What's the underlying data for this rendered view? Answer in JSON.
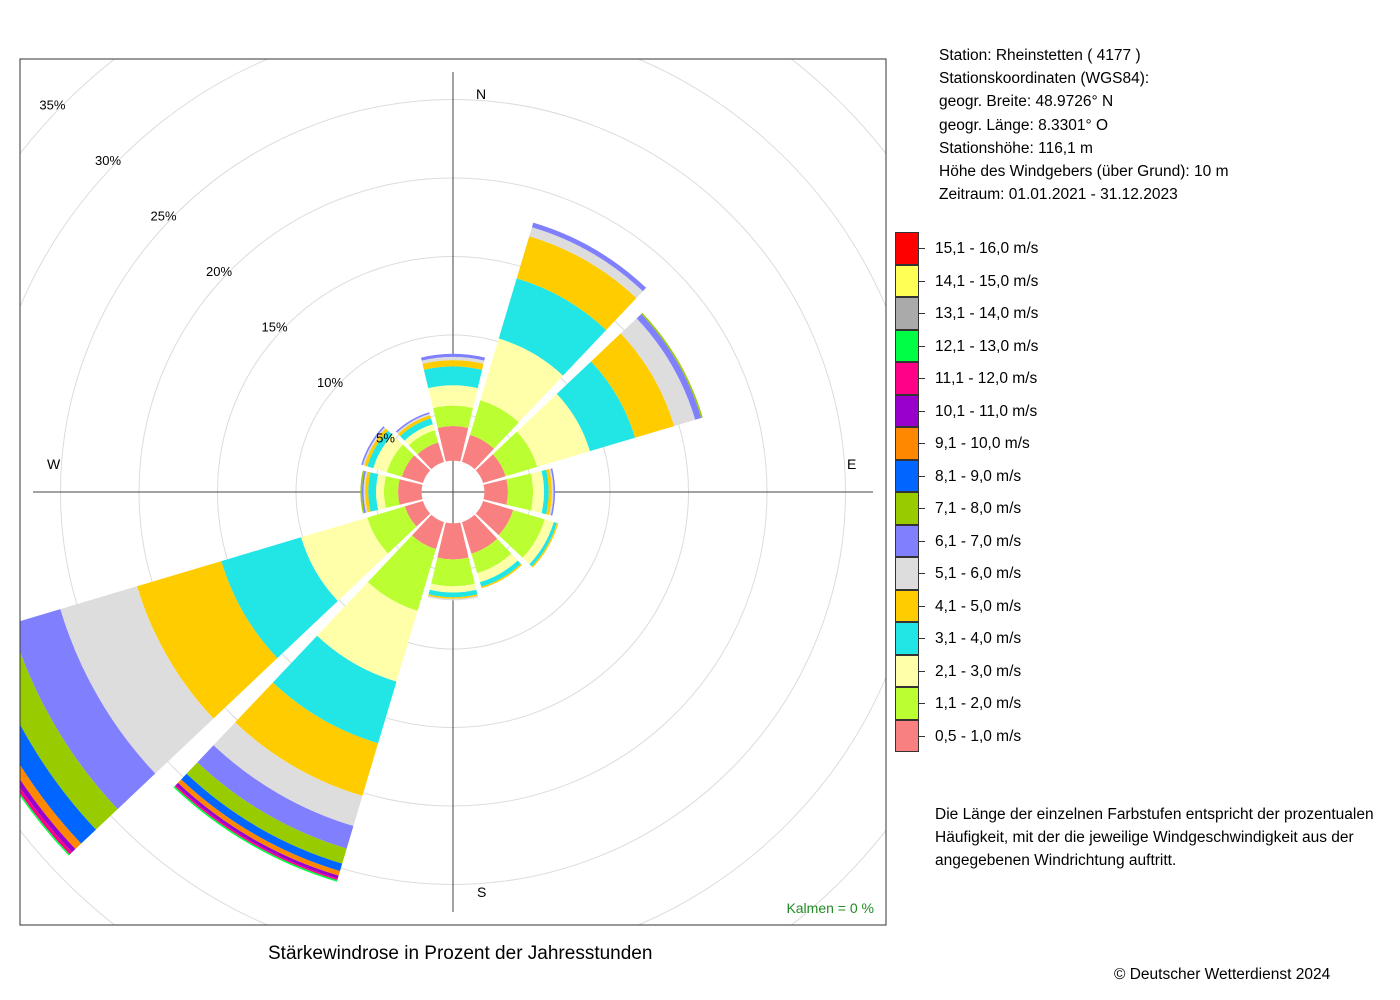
{
  "title": "Stärkewindrose in Prozent der Jahresstunden",
  "copyright": "© Deutscher Wetterdienst  2024",
  "station_info": [
    "Station:  Rheinstetten  ( 4177 )",
    "Stationskoordinaten (WGS84):",
    "geogr. Breite: 48.9726° N",
    "geogr. Länge:   8.3301° O",
    "Stationshöhe: 116,1 m",
    "Höhe des Windgebers (über Grund): 10 m",
    "Zeitraum: 01.01.2021 - 31.12.2023"
  ],
  "legend": [
    {
      "label": "15,1 - 16,0 m/s",
      "color": "#ff0000"
    },
    {
      "label": "14,1 - 15,0 m/s",
      "color": "#ffff55"
    },
    {
      "label": "13,1 - 14,0 m/s",
      "color": "#aaaaaa"
    },
    {
      "label": "12,1 - 13,0 m/s",
      "color": "#00ff44"
    },
    {
      "label": "11,1 - 12,0 m/s",
      "color": "#ff0088"
    },
    {
      "label": "10,1 - 11,0 m/s",
      "color": "#9900cc"
    },
    {
      "label": "9,1 - 10,0 m/s",
      "color": "#ff8800"
    },
    {
      "label": "8,1 - 9,0 m/s",
      "color": "#0066ff"
    },
    {
      "label": "7,1 - 8,0 m/s",
      "color": "#99cc00"
    },
    {
      "label": "6,1 - 7,0 m/s",
      "color": "#8080ff"
    },
    {
      "label": "5,1 - 6,0 m/s",
      "color": "#dddddd"
    },
    {
      "label": "4,1 - 5,0 m/s",
      "color": "#ffcc00"
    },
    {
      "label": "3,1 - 4,0 m/s",
      "color": "#22e5e5"
    },
    {
      "label": "2,1 - 3,0 m/s",
      "color": "#ffffaa"
    },
    {
      "label": "1,1 - 2,0 m/s",
      "color": "#bbff33"
    },
    {
      "label": "0,5 - 1,0 m/s",
      "color": "#f88080"
    }
  ],
  "note": "Die Länge der einzelnen Farbstufen entspricht der prozentualen Häufigkeit, mit der die jeweilige Windgeschwindigkeit aus der angegebenen Windrichtung auftritt.",
  "calm_label": "Kalmen  =  0 %",
  "calm_color": "#228b22",
  "directions": {
    "n": "N",
    "e": "E",
    "s": "S",
    "w": "W"
  },
  "ring_labels": [
    "5%",
    "10%",
    "15%",
    "20%",
    "25%",
    "30%",
    "35%"
  ],
  "chart_data": {
    "type": "wind-rose",
    "unit": "percent",
    "sector_width_deg": 30,
    "center_hole_percent": 2.0,
    "rings_percent": [
      5,
      10,
      15,
      20,
      25,
      30,
      35
    ],
    "bins": [
      "0,5 - 1,0 m/s",
      "1,1 - 2,0 m/s",
      "2,1 - 3,0 m/s",
      "3,1 - 4,0 m/s",
      "4,1 - 5,0 m/s",
      "5,1 - 6,0 m/s",
      "6,1 - 7,0 m/s",
      "7,1 - 8,0 m/s",
      "8,1 - 9,0 m/s",
      "9,1 - 10,0 m/s",
      "10,1 - 11,0 m/s",
      "11,1 - 12,0 m/s",
      "12,1 - 13,0 m/s",
      "13,1 - 14,0 m/s",
      "14,1 - 15,0 m/s",
      "15,1 - 16,0 m/s"
    ],
    "colors": [
      "#f88080",
      "#bbff33",
      "#ffffaa",
      "#22e5e5",
      "#ffcc00",
      "#dddddd",
      "#8080ff",
      "#99cc00",
      "#0066ff",
      "#ff8800",
      "#9900cc",
      "#ff0088",
      "#00ff44",
      "#aaaaaa",
      "#ffff55",
      "#ff0000"
    ],
    "sectors": [
      {
        "direction_deg": 0,
        "values": [
          2.2,
          1.3,
          1.3,
          1.2,
          0.4,
          0.2,
          0.2,
          0,
          0,
          0,
          0,
          0,
          0,
          0,
          0,
          0
        ]
      },
      {
        "direction_deg": 30,
        "values": [
          1.8,
          2.3,
          4.1,
          4.0,
          2.8,
          0.6,
          0.3,
          0,
          0,
          0,
          0,
          0,
          0,
          0,
          0,
          0
        ]
      },
      {
        "direction_deg": 60,
        "values": [
          1.5,
          2.1,
          3.5,
          3.0,
          2.6,
          1.4,
          0.4,
          0.1,
          0,
          0,
          0,
          0,
          0,
          0,
          0,
          0
        ]
      },
      {
        "direction_deg": 90,
        "values": [
          1.5,
          1.6,
          0.7,
          0.3,
          0.2,
          0.1,
          0.1,
          0,
          0,
          0,
          0,
          0,
          0,
          0,
          0,
          0
        ]
      },
      {
        "direction_deg": 120,
        "values": [
          2.0,
          2.1,
          0.6,
          0.2,
          0.1,
          0,
          0,
          0,
          0,
          0,
          0,
          0,
          0,
          0,
          0,
          0
        ]
      },
      {
        "direction_deg": 150,
        "values": [
          2.1,
          1.3,
          0.6,
          0.3,
          0.1,
          0,
          0,
          0,
          0,
          0,
          0,
          0,
          0,
          0,
          0,
          0
        ]
      },
      {
        "direction_deg": 180,
        "values": [
          2.3,
          1.7,
          0.4,
          0.3,
          0.1,
          0.1,
          0,
          0,
          0,
          0,
          0,
          0,
          0,
          0,
          0,
          0
        ]
      },
      {
        "direction_deg": 210,
        "values": [
          1.8,
          4.1,
          4.7,
          4.1,
          3.5,
          2.0,
          1.5,
          1.0,
          0.5,
          0.3,
          0.2,
          0.1,
          0.1,
          0,
          0,
          0
        ]
      },
      {
        "direction_deg": 240,
        "values": [
          1.2,
          2.5,
          4.4,
          5.3,
          5.6,
          5.1,
          3.3,
          1.9,
          1.3,
          0.5,
          0.3,
          0.2,
          0.1,
          0,
          0,
          0
        ]
      },
      {
        "direction_deg": 270,
        "values": [
          1.5,
          0.9,
          0.5,
          0.5,
          0.2,
          0.1,
          0.1,
          0.1,
          0,
          0,
          0,
          0,
          0,
          0,
          0,
          0
        ]
      },
      {
        "direction_deg": 300,
        "values": [
          1.4,
          1.0,
          0.9,
          0.4,
          0.2,
          0.1,
          0.1,
          0,
          0,
          0,
          0,
          0,
          0,
          0,
          0,
          0
        ]
      },
      {
        "direction_deg": 330,
        "values": [
          1.3,
          0.8,
          0.4,
          0.4,
          0.2,
          0.1,
          0.1,
          0,
          0,
          0,
          0,
          0,
          0,
          0,
          0,
          0
        ]
      }
    ]
  }
}
